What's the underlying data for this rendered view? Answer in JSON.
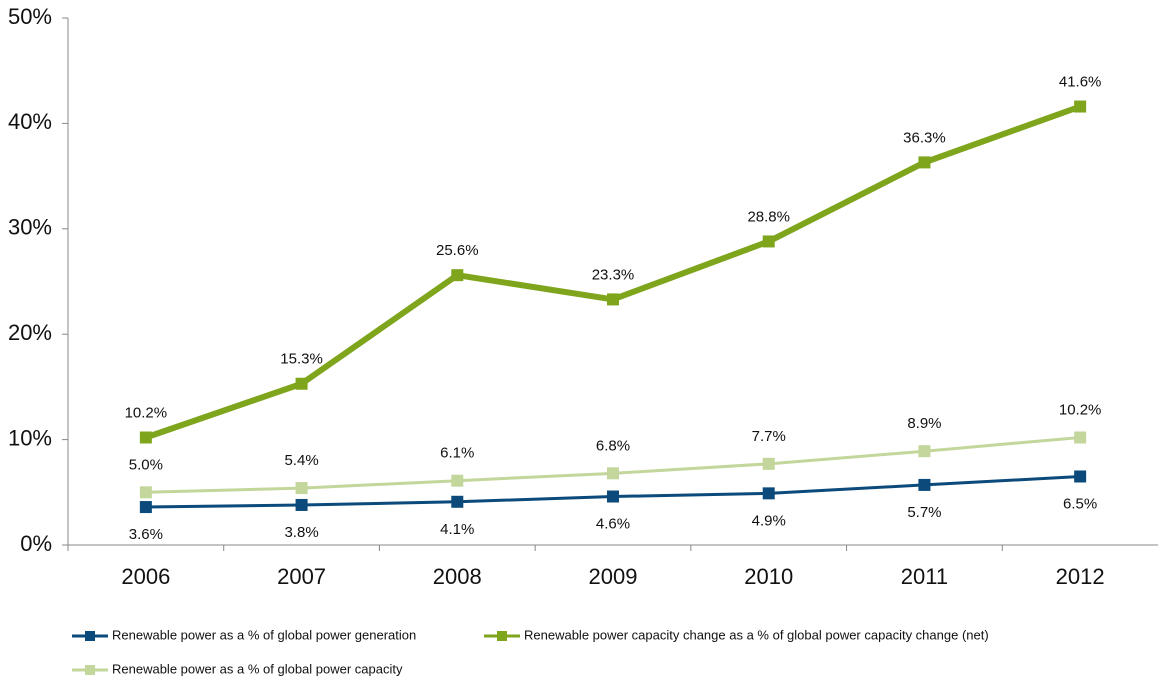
{
  "chart_data": {
    "type": "line",
    "categories": [
      "2006",
      "2007",
      "2008",
      "2009",
      "2010",
      "2011",
      "2012"
    ],
    "series": [
      {
        "name": "Renewable power as a % of global power generation",
        "color": "#0b4a7a",
        "values": [
          3.6,
          3.8,
          4.1,
          4.6,
          4.9,
          5.7,
          6.5
        ],
        "value_labels": [
          "3.6%",
          "3.8%",
          "4.1%",
          "4.6%",
          "4.9%",
          "5.7%",
          "6.5%"
        ]
      },
      {
        "name": "Renewable power capacity change as a % of global power capacity change (net)",
        "color": "#7ea51c",
        "values": [
          10.2,
          15.3,
          25.6,
          23.3,
          28.8,
          36.3,
          41.6
        ],
        "value_labels": [
          "10.2%",
          "15.3%",
          "25.6%",
          "23.3%",
          "28.8%",
          "36.3%",
          "41.6%"
        ]
      },
      {
        "name": "Renewable power as a % of global power capacity",
        "color": "#c3d69b",
        "values": [
          5.0,
          5.4,
          6.1,
          6.8,
          7.7,
          8.9,
          10.2
        ],
        "value_labels": [
          "5.0%",
          "5.4%",
          "6.1%",
          "6.8%",
          "7.7%",
          "8.9%",
          "10.2%"
        ]
      }
    ],
    "ylim": [
      0,
      50
    ],
    "yticks": [
      {
        "value": 0,
        "label": "0%"
      },
      {
        "value": 10,
        "label": "10%"
      },
      {
        "value": 20,
        "label": "20%"
      },
      {
        "value": 30,
        "label": "30%"
      },
      {
        "value": 40,
        "label": "40%"
      },
      {
        "value": 50,
        "label": "50%"
      }
    ],
    "legend": "bottom"
  }
}
